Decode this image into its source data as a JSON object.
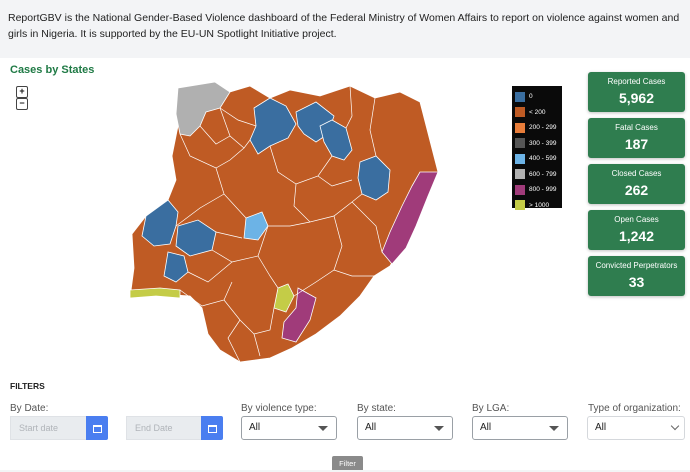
{
  "intro": "ReportGBV is the National Gender-Based Violence dashboard of the Federal Ministry of Women Affairs to report on violence against women and girls in Nigeria. It is supported by the EU-UN Spotlight Initiative project.",
  "map": {
    "title": "Cases by States",
    "zoom_in": "+",
    "zoom_out": "−",
    "colors": {
      "band_0": "#3a6ea0",
      "lt_200": "#bf5b24",
      "200_299": "#e87d3a",
      "300_399": "#555555",
      "400_599": "#6cb3e6",
      "600_799": "#b0b0b0",
      "800_999": "#a03b7a",
      "gt_1000": "#c4cc47"
    }
  },
  "legend": [
    {
      "label": "0",
      "color": "#3a6ea0"
    },
    {
      "label": "< 200",
      "color": "#bf5b24"
    },
    {
      "label": "200 - 299",
      "color": "#e87d3a"
    },
    {
      "label": "300 - 399",
      "color": "#555555"
    },
    {
      "label": "400 - 599",
      "color": "#6cb3e6"
    },
    {
      "label": "600 - 799",
      "color": "#b0b0b0"
    },
    {
      "label": "800 - 999",
      "color": "#a03b7a"
    },
    {
      "label": "> 1000",
      "color": "#c4cc47"
    }
  ],
  "stats": [
    {
      "label": "Reported Cases",
      "value": "5,962"
    },
    {
      "label": "Fatal Cases",
      "value": "187"
    },
    {
      "label": "Closed Cases",
      "value": "262"
    },
    {
      "label": "Open Cases",
      "value": "1,242"
    },
    {
      "label": "Convicted Perpetrators",
      "value": "33"
    }
  ],
  "filters": {
    "title": "FILTERS",
    "by_date": "By Date:",
    "start_placeholder": "Start date",
    "end_placeholder": "End Date",
    "violence_label": "By violence type:",
    "violence_value": "All",
    "state_label": "By state:",
    "state_value": "All",
    "lga_label": "By LGA:",
    "lga_value": "All",
    "org_label": "Type of organization:",
    "org_value": "All",
    "filter_button": "Filter"
  }
}
